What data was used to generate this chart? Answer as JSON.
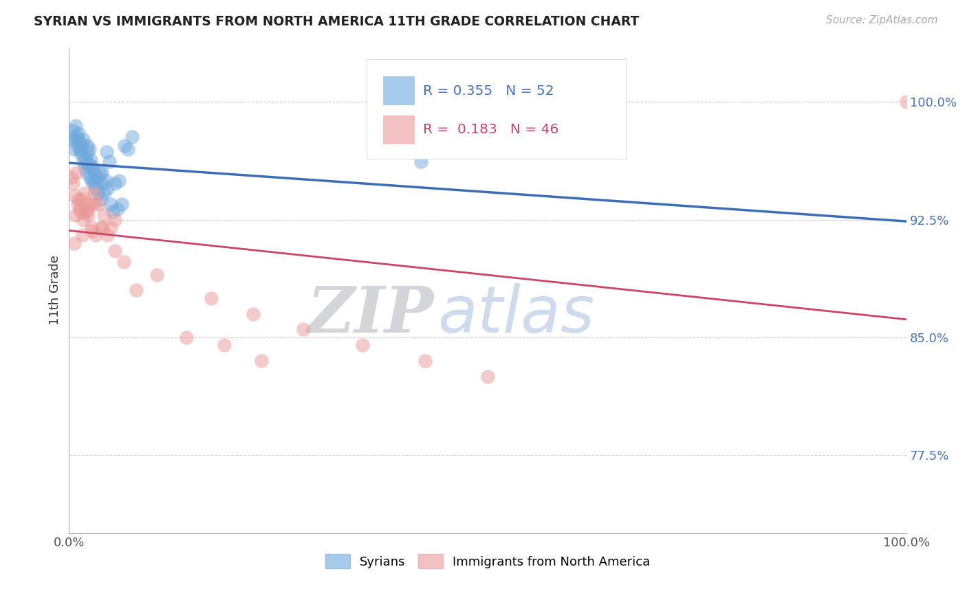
{
  "title": "SYRIAN VS IMMIGRANTS FROM NORTH AMERICA 11TH GRADE CORRELATION CHART",
  "source_text": "Source: ZipAtlas.com",
  "ylabel": "11th Grade",
  "xlim": [
    0.0,
    100.0
  ],
  "ylim": [
    72.5,
    103.5
  ],
  "yticks": [
    77.5,
    85.0,
    92.5,
    100.0
  ],
  "xticks": [
    0.0,
    100.0
  ],
  "ytick_labels": [
    "77.5%",
    "85.0%",
    "92.5%",
    "100.0%"
  ],
  "xtick_labels": [
    "0.0%",
    "100.0%"
  ],
  "blue_color": "#6fa8dc",
  "pink_color": "#ea9999",
  "blue_line_color": "#3d6eb5",
  "pink_line_color": "#cc4466",
  "R_blue": 0.355,
  "N_blue": 52,
  "R_pink": 0.183,
  "N_pink": 46,
  "watermark_zip": "ZIP",
  "watermark_atlas": "atlas",
  "legend_syrians": "Syrians",
  "legend_immigrants": "Immigrants from North America",
  "blue_scatter_x": [
    0.3,
    0.5,
    0.7,
    0.8,
    1.0,
    1.1,
    1.3,
    1.4,
    1.5,
    1.6,
    1.7,
    1.8,
    1.9,
    2.0,
    2.1,
    2.2,
    2.3,
    2.4,
    2.5,
    2.6,
    2.7,
    2.8,
    2.9,
    3.0,
    3.2,
    3.4,
    3.5,
    3.7,
    3.8,
    4.0,
    4.2,
    4.4,
    4.6,
    4.8,
    5.0,
    5.2,
    5.5,
    5.8,
    6.0,
    6.3,
    6.6,
    7.0,
    7.5,
    0.6,
    0.9,
    1.2,
    2.15,
    2.55,
    3.1,
    3.9,
    4.5,
    42.0
  ],
  "blue_scatter_y": [
    97.8,
    98.2,
    97.5,
    98.5,
    97.2,
    98.0,
    97.0,
    96.8,
    97.3,
    96.5,
    97.6,
    96.2,
    95.8,
    96.4,
    95.5,
    96.8,
    96.0,
    97.0,
    95.2,
    96.3,
    95.0,
    95.8,
    94.8,
    95.5,
    94.5,
    95.2,
    94.2,
    95.5,
    93.8,
    94.8,
    94.2,
    95.0,
    94.5,
    96.2,
    93.5,
    93.0,
    94.8,
    93.2,
    95.0,
    93.5,
    97.2,
    97.0,
    97.8,
    97.0,
    97.8,
    97.5,
    97.2,
    96.0,
    95.0,
    95.5,
    96.8,
    96.2
  ],
  "pink_scatter_x": [
    0.3,
    0.5,
    0.7,
    0.9,
    1.1,
    1.3,
    1.5,
    1.7,
    1.9,
    2.1,
    2.3,
    2.5,
    2.7,
    2.9,
    3.2,
    3.5,
    3.8,
    4.2,
    4.6,
    5.0,
    5.5,
    1.0,
    1.8,
    2.2,
    0.8,
    1.4,
    2.0,
    4.0,
    0.6,
    1.6,
    10.5,
    17.0,
    22.0,
    28.0,
    35.0,
    42.5,
    50.0,
    5.5,
    6.5,
    2.8,
    3.0,
    8.0,
    14.0,
    18.5,
    23.0,
    100.0
  ],
  "pink_scatter_y": [
    95.2,
    94.8,
    94.0,
    95.5,
    93.8,
    93.2,
    93.8,
    92.5,
    94.2,
    93.0,
    92.8,
    93.5,
    92.0,
    93.5,
    91.5,
    93.5,
    92.0,
    92.8,
    91.5,
    92.0,
    92.5,
    93.5,
    93.0,
    93.2,
    92.8,
    93.0,
    93.5,
    92.0,
    91.0,
    91.5,
    89.0,
    87.5,
    86.5,
    85.5,
    84.5,
    83.5,
    82.5,
    90.5,
    89.8,
    91.8,
    94.2,
    88.0,
    85.0,
    84.5,
    83.5,
    100.0
  ]
}
